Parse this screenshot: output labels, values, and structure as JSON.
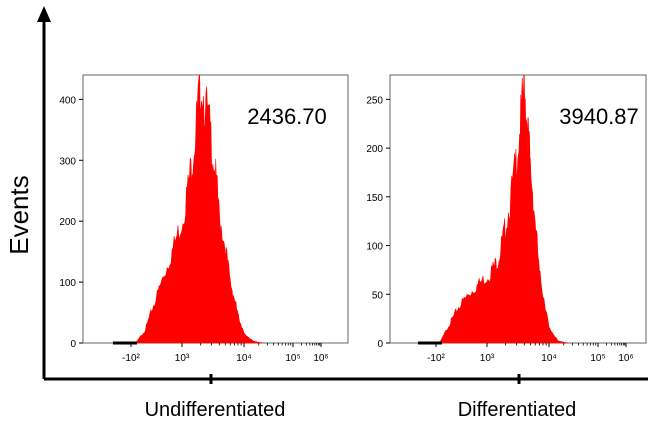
{
  "figure": {
    "ylabel": "Events",
    "hist_color": "#ff0000",
    "line_color": "#000000"
  },
  "chart_data": [
    {
      "type": "histogram",
      "xlabel": "Undifferentiated",
      "ylabel": "Events",
      "annotation": "2436.70",
      "yticks": [
        0,
        100,
        200,
        300,
        400
      ],
      "ylim": [
        0,
        440
      ],
      "x_scale": "biexponential",
      "xticks": [
        "-10²",
        "10³",
        "10⁴",
        "10⁵",
        "10⁶"
      ],
      "x": [
        -100,
        0,
        200,
        400,
        700,
        1000,
        1500,
        2000,
        3000,
        4000,
        6000,
        8000,
        10000,
        14000,
        20000
      ],
      "values": [
        0,
        0,
        20,
        65,
        130,
        200,
        310,
        430,
        330,
        210,
        100,
        45,
        15,
        3,
        0
      ]
    },
    {
      "type": "histogram",
      "xlabel": "Differentiated",
      "ylabel": "",
      "annotation": "3940.87",
      "yticks": [
        0,
        50,
        100,
        150,
        200,
        250
      ],
      "ylim": [
        0,
        275
      ],
      "x_scale": "biexponential",
      "xticks": [
        "-10²",
        "10³",
        "10⁴",
        "10⁵",
        "10⁶"
      ],
      "x": [
        -100,
        0,
        200,
        400,
        700,
        1000,
        1500,
        2000,
        3000,
        4000,
        5000,
        7000,
        10000,
        14000,
        20000
      ],
      "values": [
        0,
        2,
        20,
        38,
        55,
        68,
        85,
        120,
        190,
        265,
        180,
        70,
        15,
        2,
        0
      ]
    }
  ]
}
